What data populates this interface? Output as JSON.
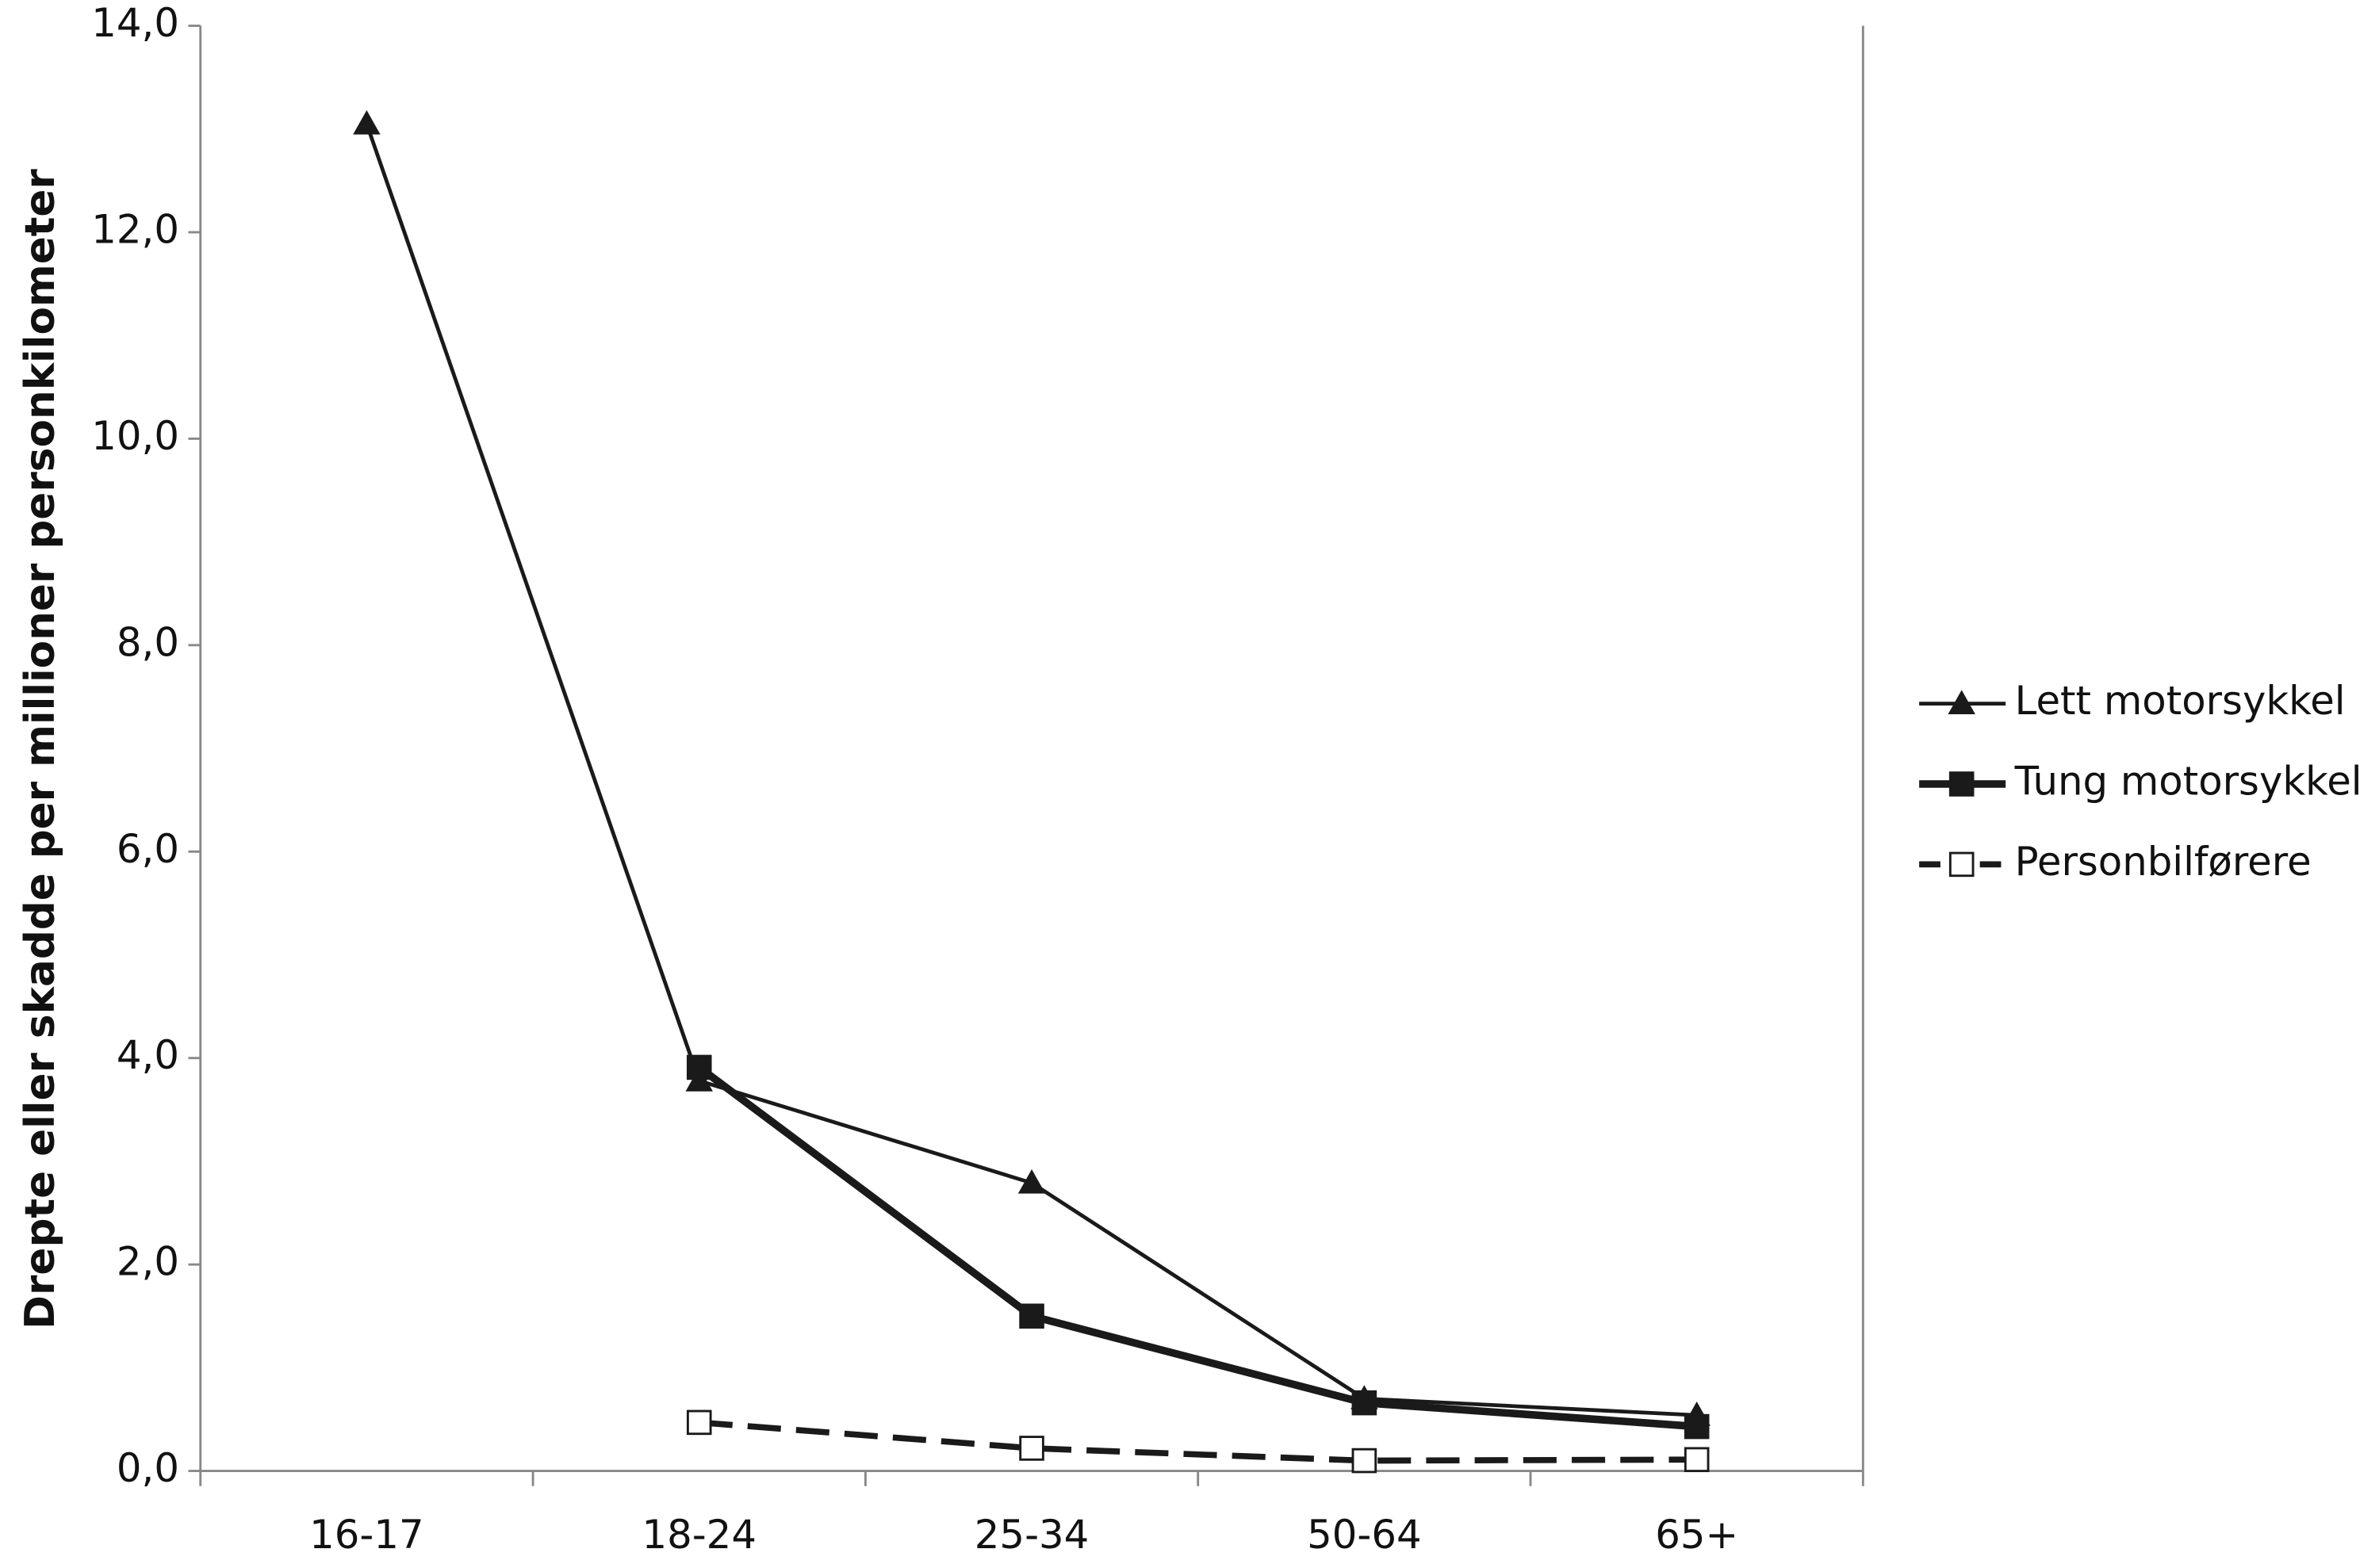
{
  "chart_data": {
    "type": "line",
    "y_label": "Drepte eller skadde per millioner personkilometer",
    "categories": [
      "16-17",
      "18-24",
      "25-34",
      "50-64",
      "65+"
    ],
    "series": [
      {
        "name": "Lett motorsykkel",
        "color": "#1a1a1a",
        "marker": "triangle",
        "line_width": 2.5,
        "dashed": false,
        "values": [
          13.05,
          3.78,
          2.79,
          0.7,
          0.54
        ]
      },
      {
        "name": "Tung motorsykkel",
        "color": "#1a1a1a",
        "marker": "square",
        "line_width": 5,
        "dashed": false,
        "values": [
          null,
          3.91,
          1.5,
          0.66,
          0.43
        ]
      },
      {
        "name": "Personbilførere",
        "color": "#1a1a1a",
        "marker": "open-square",
        "line_width": 4,
        "dashed": true,
        "values": [
          null,
          0.47,
          0.22,
          0.1,
          0.11
        ]
      }
    ],
    "ylim": [
      0,
      14
    ],
    "yticks": [
      {
        "value": 0,
        "label": "0,0"
      },
      {
        "value": 2,
        "label": "2,0"
      },
      {
        "value": 4,
        "label": "4,0"
      },
      {
        "value": 6,
        "label": "6,0"
      },
      {
        "value": 8,
        "label": "8,0"
      },
      {
        "value": 10,
        "label": "10,0"
      },
      {
        "value": 12,
        "label": "12,0"
      },
      {
        "value": 14,
        "label": "14,0"
      }
    ],
    "grid": false,
    "legend": "right"
  }
}
